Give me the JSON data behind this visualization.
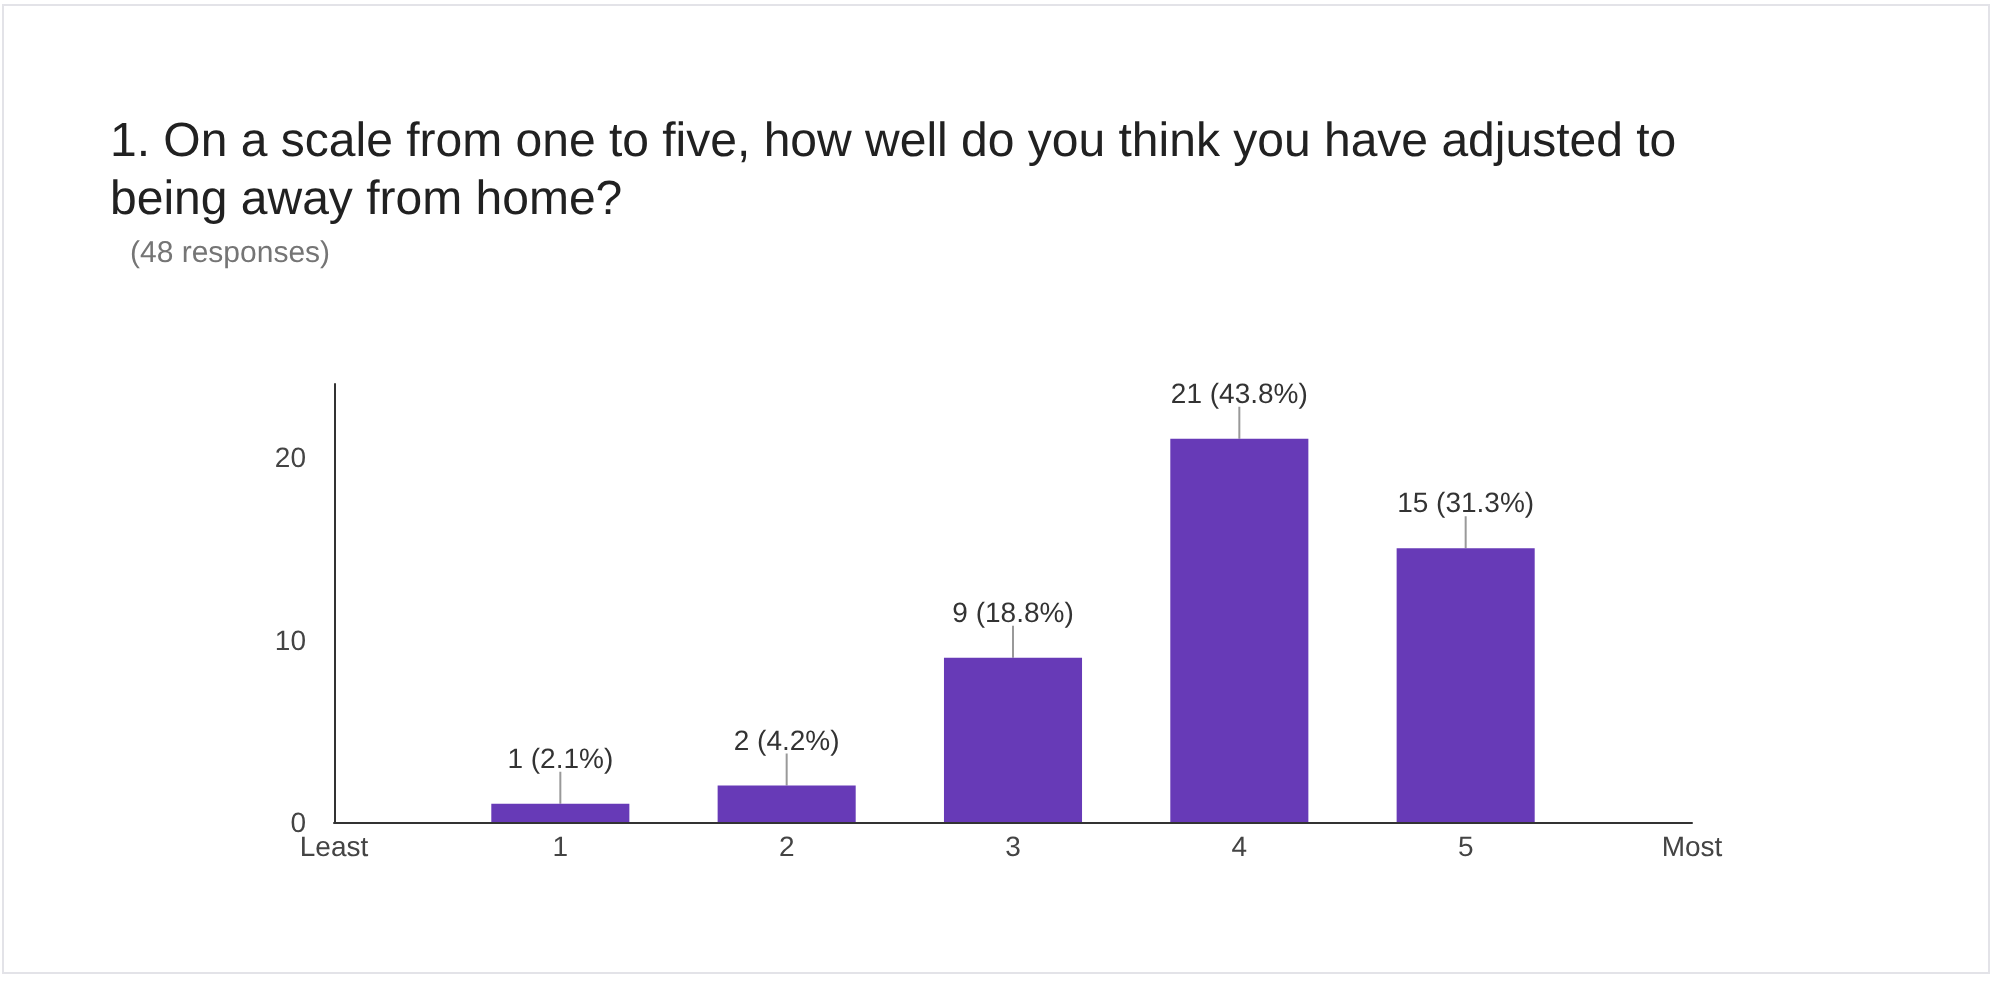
{
  "chart_data": {
    "type": "bar",
    "title": "1. On a scale from one to five, how well do you think you have adjusted to being away from home?",
    "subtitle": "(48 responses)",
    "x": [
      1,
      2,
      3,
      4,
      5
    ],
    "values": [
      1,
      2,
      9,
      21,
      15
    ],
    "color": "#673ab7",
    "value_labels": [
      "1 (2.1%)",
      "2 (4.2%)",
      "9 (18.8%)",
      "21 (43.8%)",
      "15 (31.3%)"
    ],
    "xlim": [
      0,
      6
    ],
    "xticks": [
      {
        "value": 0,
        "label": "Least"
      },
      1,
      2,
      3,
      4,
      5,
      {
        "value": 6,
        "label": "Most"
      }
    ],
    "ylim": [
      0,
      24
    ],
    "yticks": [
      0,
      10,
      20
    ],
    "grid": false
  }
}
